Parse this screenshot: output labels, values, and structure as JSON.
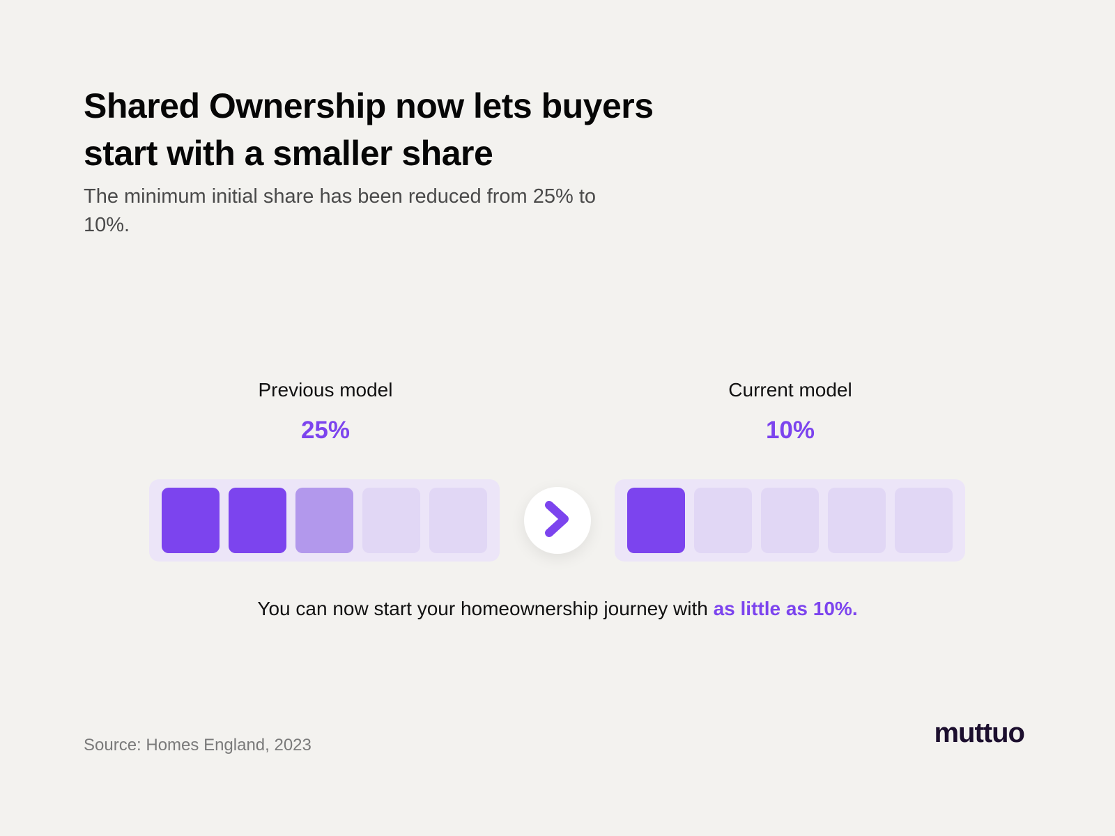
{
  "header": {
    "title": "Shared Ownership now lets buyers start with a smaller share",
    "subtitle": "The minimum initial share has been reduced from 25% to 10%."
  },
  "models": {
    "previous": {
      "label": "Previous model",
      "value_text": "25%",
      "share": 0.25
    },
    "current": {
      "label": "Current model",
      "value_text": "10%",
      "share": 0.1
    },
    "segments_per_track": 5
  },
  "footnote": {
    "text": "You can now start your homeownership journey with ",
    "highlight": "as little as 10%."
  },
  "source": "Source: Homes England, 2023",
  "logo": "muttuo",
  "icons": {
    "arrow": "chevron-right-icon"
  },
  "colors": {
    "accent": "#7c44ee",
    "accent_partial": "#b298ec",
    "segment_empty": "#e1d7f5",
    "track_bg": "#ece5f8",
    "background": "#f3f2ef"
  }
}
